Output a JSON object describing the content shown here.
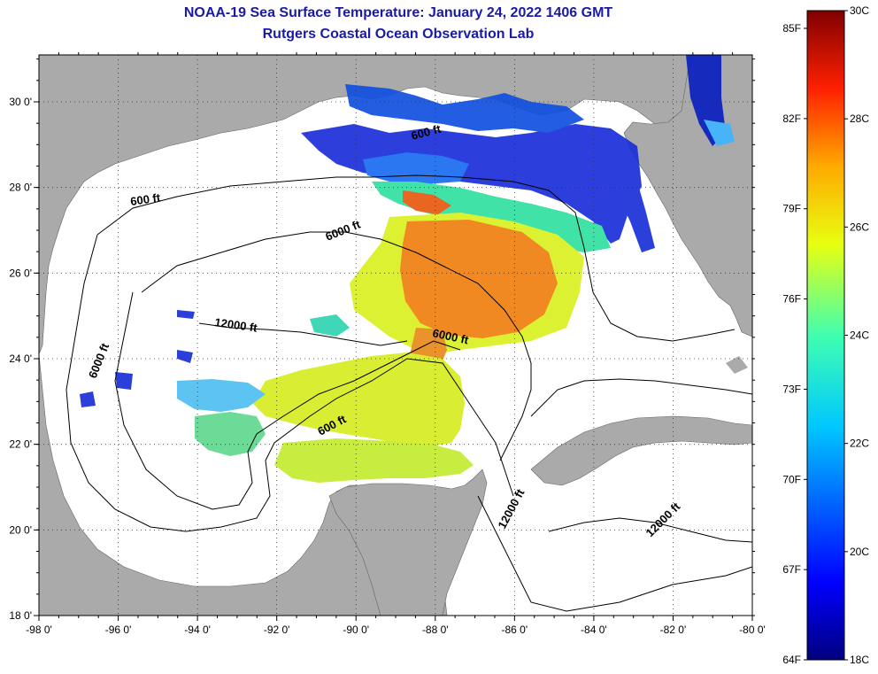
{
  "title": {
    "line1": "NOAA-19 Sea Surface Temperature:  January 24, 2022 1406 GMT",
    "line2": "Rutgers Coastal Ocean Observation Lab"
  },
  "map": {
    "x_ticks": [
      "-98 0'",
      "-96 0'",
      "-94 0'",
      "-92 0'",
      "-90 0'",
      "-88 0'",
      "-86 0'",
      "-84 0'",
      "-82 0'",
      "-80 0'"
    ],
    "y_ticks": [
      "30 0'",
      "28 0'",
      "26 0'",
      "24 0'",
      "22 0'",
      "20 0'",
      "18 0'"
    ],
    "contour_labels": [
      "600 ft",
      "600 ft",
      "6000 ft",
      "12000 ft",
      "6000 ft",
      "6000 ft",
      "600 ft",
      "12000 ft",
      "12000 ft"
    ],
    "land_color": "#aaaaaa",
    "water_color": "#ffffff"
  },
  "colorbar": {
    "fahrenheit_labels": [
      "85F",
      "82F",
      "79F",
      "76F",
      "73F",
      "70F",
      "67F",
      "64F"
    ],
    "celsius_labels": [
      "30C",
      "28C",
      "26C",
      "24C",
      "22C",
      "20C",
      "18C"
    ],
    "range_celsius": [
      18,
      30
    ]
  }
}
